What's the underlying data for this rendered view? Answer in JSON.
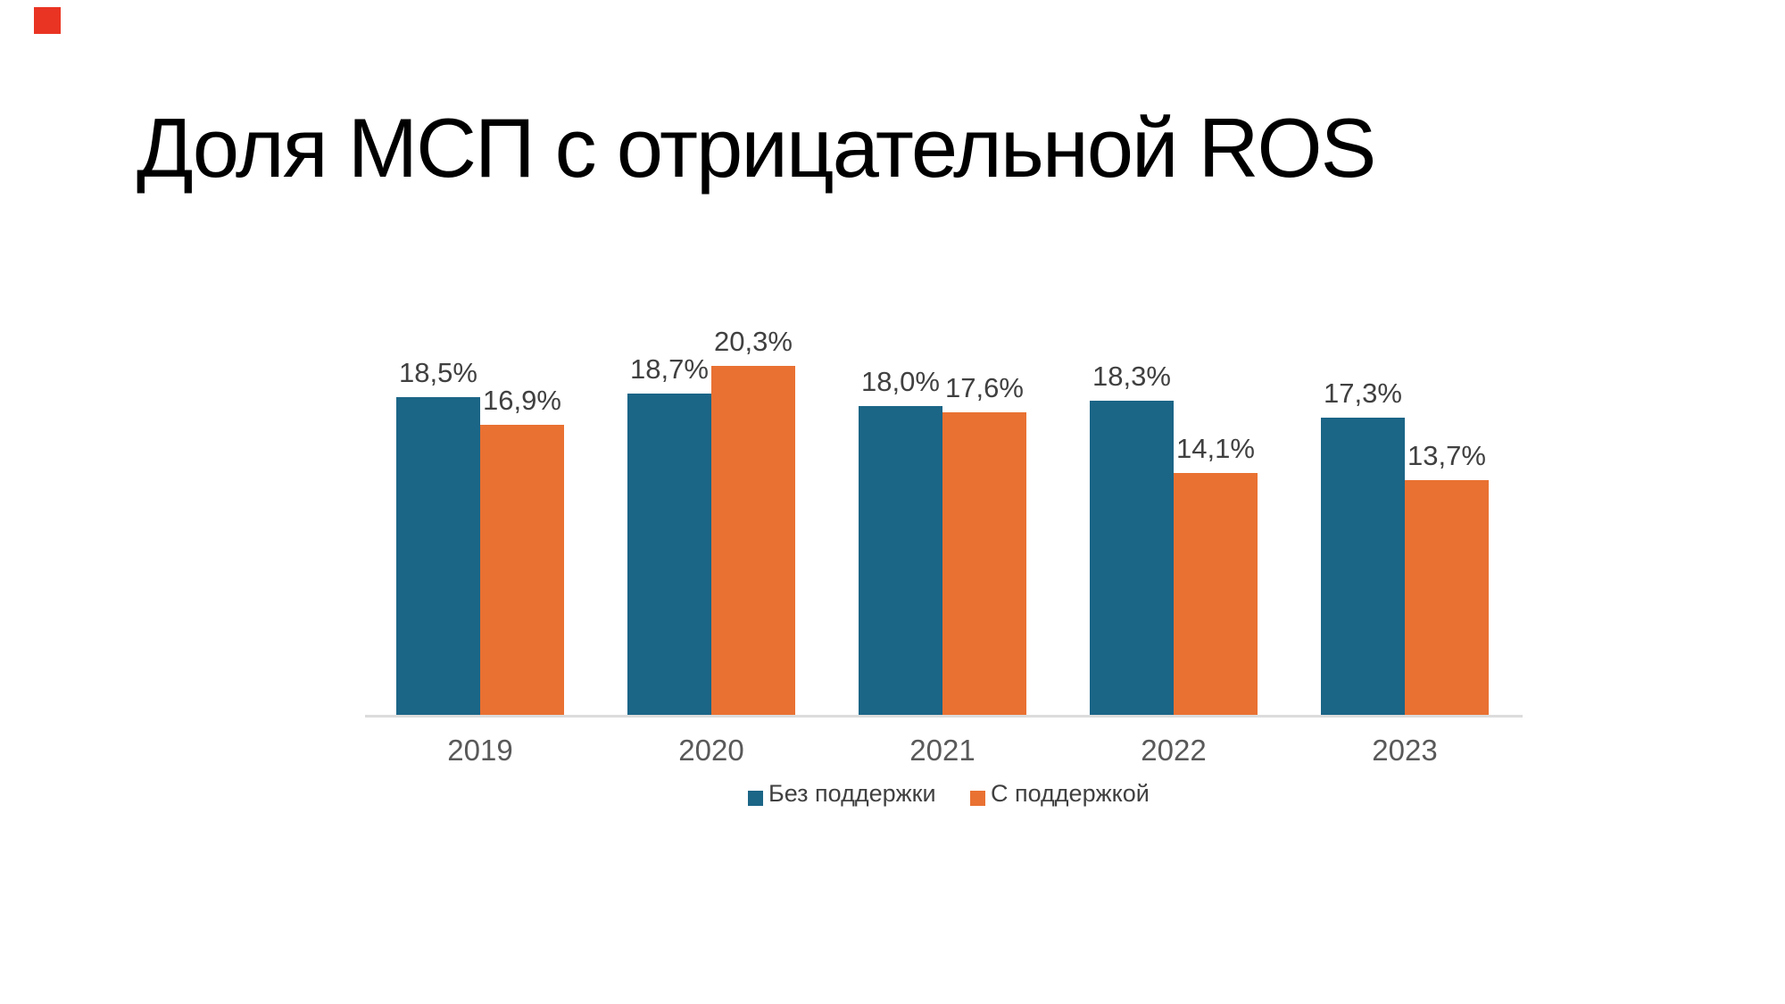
{
  "slide": {
    "title": "Доля МСП с отрицательной ROS",
    "marker_color": "#ea3423",
    "background": "#ffffff"
  },
  "chart_data": {
    "type": "bar",
    "title": "Доля МСП с отрицательной ROS",
    "categories": [
      "2019",
      "2020",
      "2021",
      "2022",
      "2023"
    ],
    "series": [
      {
        "name": "Без поддержки",
        "color": "#1b6587",
        "values": [
          18.5,
          18.7,
          18.0,
          18.3,
          17.3
        ],
        "labels": [
          "18,5%",
          "18,7%",
          "18,0%",
          "18,3%",
          "17,3%"
        ]
      },
      {
        "name": "С поддержкой",
        "color": "#e97132",
        "values": [
          16.9,
          20.3,
          17.6,
          14.1,
          13.7
        ],
        "labels": [
          "16,9%",
          "20,3%",
          "17,6%",
          "14,1%",
          "13,7%"
        ]
      }
    ],
    "xlabel": "",
    "ylabel": "",
    "ylim": [
      0,
      21
    ],
    "grid": false,
    "y_axis_visible": false,
    "legend_position": "bottom",
    "value_labels": true,
    "decimal_separator": ","
  },
  "axis": {
    "line_color": "#dcdcdc",
    "tick_color": "#595959",
    "value_label_color": "#404040"
  },
  "legend": {
    "items": [
      {
        "label": "Без поддержки",
        "color": "#1b6587"
      },
      {
        "label": "С поддержкой",
        "color": "#e97132"
      }
    ]
  }
}
